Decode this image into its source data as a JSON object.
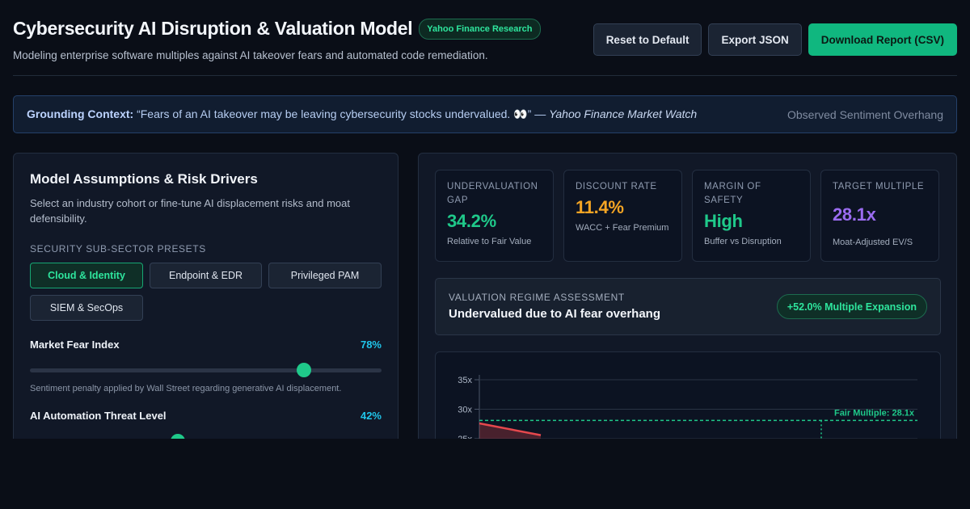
{
  "header": {
    "title": "Cybersecurity AI Disruption & Valuation Model",
    "source_badge": "Yahoo Finance Research",
    "subtitle": "Modeling enterprise software multiples against AI takeover fears and automated code remediation.",
    "actions": {
      "reset_label": "Reset to Default",
      "export_label": "Export JSON",
      "download_label": "Download Report (CSV)"
    }
  },
  "context": {
    "prefix": "Grounding Context:",
    "quote": " “Fears of an AI takeover may be leaving cybersecurity stocks undervalued. 👀” — ",
    "source": "Yahoo Finance Market Watch",
    "status": "Observed Sentiment Overhang"
  },
  "assumptions": {
    "title": "Model Assumptions & Risk Drivers",
    "description": "Select an industry cohort or fine-tune AI displacement risks and moat defensibility.",
    "presets_label": "Security Sub-Sector Presets",
    "presets": [
      {
        "label": "Cloud & Identity",
        "active": true
      },
      {
        "label": "Endpoint & EDR",
        "active": false
      },
      {
        "label": "Privileged PAM",
        "active": false
      },
      {
        "label": "SIEM & SecOps",
        "active": false
      }
    ],
    "sliders": [
      {
        "label": "Market Fear Index",
        "value_text": "78%",
        "value": 78,
        "note": "Sentiment penalty applied by Wall Street regarding generative AI displacement."
      },
      {
        "label": "AI Automation Threat Level",
        "value_text": "42%",
        "value": 42,
        "note": ""
      }
    ]
  },
  "kpis": [
    {
      "label": "Undervaluation Gap",
      "value": "34.2%",
      "sub": "Relative to Fair Value",
      "color": "#1fc98a"
    },
    {
      "label": "Discount Rate",
      "value": "11.4%",
      "sub": "WACC + Fear Premium",
      "color": "#f5a524"
    },
    {
      "label": "Margin of Safety",
      "value": "High",
      "sub": "Buffer vs Disruption",
      "color": "#1fc98a"
    },
    {
      "label": "Target Multiple",
      "value": "28.1x",
      "sub": "Moat-Adjusted EV/S",
      "color": "#9a6cf0"
    }
  ],
  "regime": {
    "label": "Valuation Regime Assessment",
    "text": "Undervalued due to AI fear overhang",
    "badge": "+52.0% Multiple Expansion"
  },
  "chart_data": {
    "type": "line",
    "ylim": [
      25,
      35
    ],
    "y_ticks": [
      "35x",
      "30x",
      "25x"
    ],
    "y_tick_values": [
      35,
      30,
      25
    ],
    "fair_multiple": 28.1,
    "fair_label": "Fair Multiple: 28.1x",
    "grid": true,
    "colors": {
      "fair": "#1fc98a",
      "series": "#e5484d",
      "grid": "#2a3344",
      "axis": "#4a5468"
    }
  }
}
